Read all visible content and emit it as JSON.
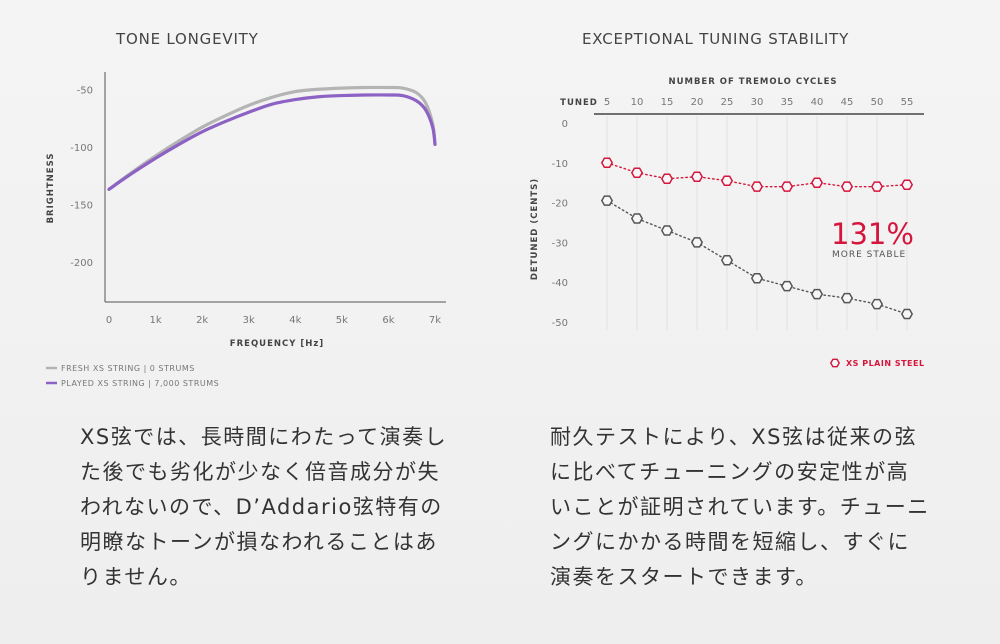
{
  "left_panel": {
    "title": "TONE LONGEVITY",
    "legend": [
      {
        "label": "FRESH XS STRING | 0 STRUMS",
        "color": "#b4b4b4"
      },
      {
        "label": "PLAYED XS STRING | 7,000 STRUMS",
        "color": "#8c62c4"
      }
    ],
    "description": "XS弦では、長時間にわたって演奏した後でも劣化が少なく倍音成分が失われないので、D’Addario弦特有の明瞭なトーンが損なわれることはありません。"
  },
  "right_panel": {
    "title": "EXCEPTIONAL TUNING STABILITY",
    "callout_value": "131%",
    "callout_label": "MORE STABLE",
    "legend": [
      {
        "label": "XS PLAIN STEEL",
        "color": "#d4163c"
      }
    ],
    "description": "耐久テストにより、XS弦は従来の弦に比べてチューニングの安定性が高いことが証明されています。チューニングにかかる時間を短縮し、すぐに演奏をスタートできます。"
  },
  "chart_data": [
    {
      "type": "line",
      "title": "TONE LONGEVITY",
      "xlabel": "FREQUENCY [Hz]",
      "ylabel": "BRIGHTNESS",
      "x_ticks": [
        "0",
        "1k",
        "2k",
        "3k",
        "4k",
        "5k",
        "6k",
        "7k"
      ],
      "y_ticks": [
        "-50",
        "-100",
        "-150",
        "-200"
      ],
      "xlim": [
        0,
        7000
      ],
      "ylim": [
        -235,
        -35
      ],
      "grid": false,
      "series": [
        {
          "name": "FRESH XS STRING | 0 STRUMS",
          "color": "#b4b4b4",
          "x": [
            0,
            500,
            1000,
            1500,
            2000,
            2500,
            3000,
            3500,
            4000,
            4500,
            5000,
            5500,
            6000,
            6300,
            6600,
            6800,
            6950,
            7000
          ],
          "y": [
            -137,
            -122,
            -108,
            -95,
            -83,
            -73,
            -64,
            -57,
            -52,
            -50,
            -49,
            -48.5,
            -48.5,
            -49,
            -53,
            -62,
            -80,
            -97
          ]
        },
        {
          "name": "PLAYED XS STRING | 7,000 STRUMS",
          "color": "#8c62c4",
          "x": [
            0,
            500,
            1000,
            1500,
            2000,
            2500,
            3000,
            3500,
            4000,
            4500,
            5000,
            5500,
            6000,
            6300,
            6600,
            6800,
            6950,
            7000
          ],
          "y": [
            -137,
            -123,
            -110,
            -98,
            -87,
            -78,
            -70,
            -63,
            -59,
            -56.5,
            -55.5,
            -55,
            -55,
            -55.5,
            -60,
            -68,
            -83,
            -98
          ]
        }
      ]
    },
    {
      "type": "scatter",
      "title": "EXCEPTIONAL TUNING STABILITY",
      "xlabel": "NUMBER OF TREMOLO CYCLES",
      "ylabel": "DETUNED (CENTS)",
      "x_ticks": [
        "TUNED",
        "5",
        "10",
        "15",
        "20",
        "25",
        "30",
        "35",
        "40",
        "45",
        "50",
        "55"
      ],
      "y_ticks": [
        "0",
        "-10",
        "-20",
        "-30",
        "-40",
        "-50"
      ],
      "ylim": [
        0,
        -50
      ],
      "grid": true,
      "x": [
        5,
        10,
        15,
        20,
        25,
        30,
        35,
        40,
        45,
        50,
        55
      ],
      "series": [
        {
          "name": "XS PLAIN STEEL",
          "color": "#d4163c",
          "values": [
            -10,
            -12.5,
            -14,
            -13.5,
            -14.5,
            -16,
            -16,
            -15,
            -16,
            -16,
            -15.5
          ]
        },
        {
          "color": "#555555",
          "values": [
            -19.5,
            -24,
            -27,
            -30,
            -34.5,
            -39,
            -41,
            -43,
            -44,
            -45.5,
            -48
          ]
        }
      ],
      "annotation": "131% MORE STABLE"
    }
  ]
}
